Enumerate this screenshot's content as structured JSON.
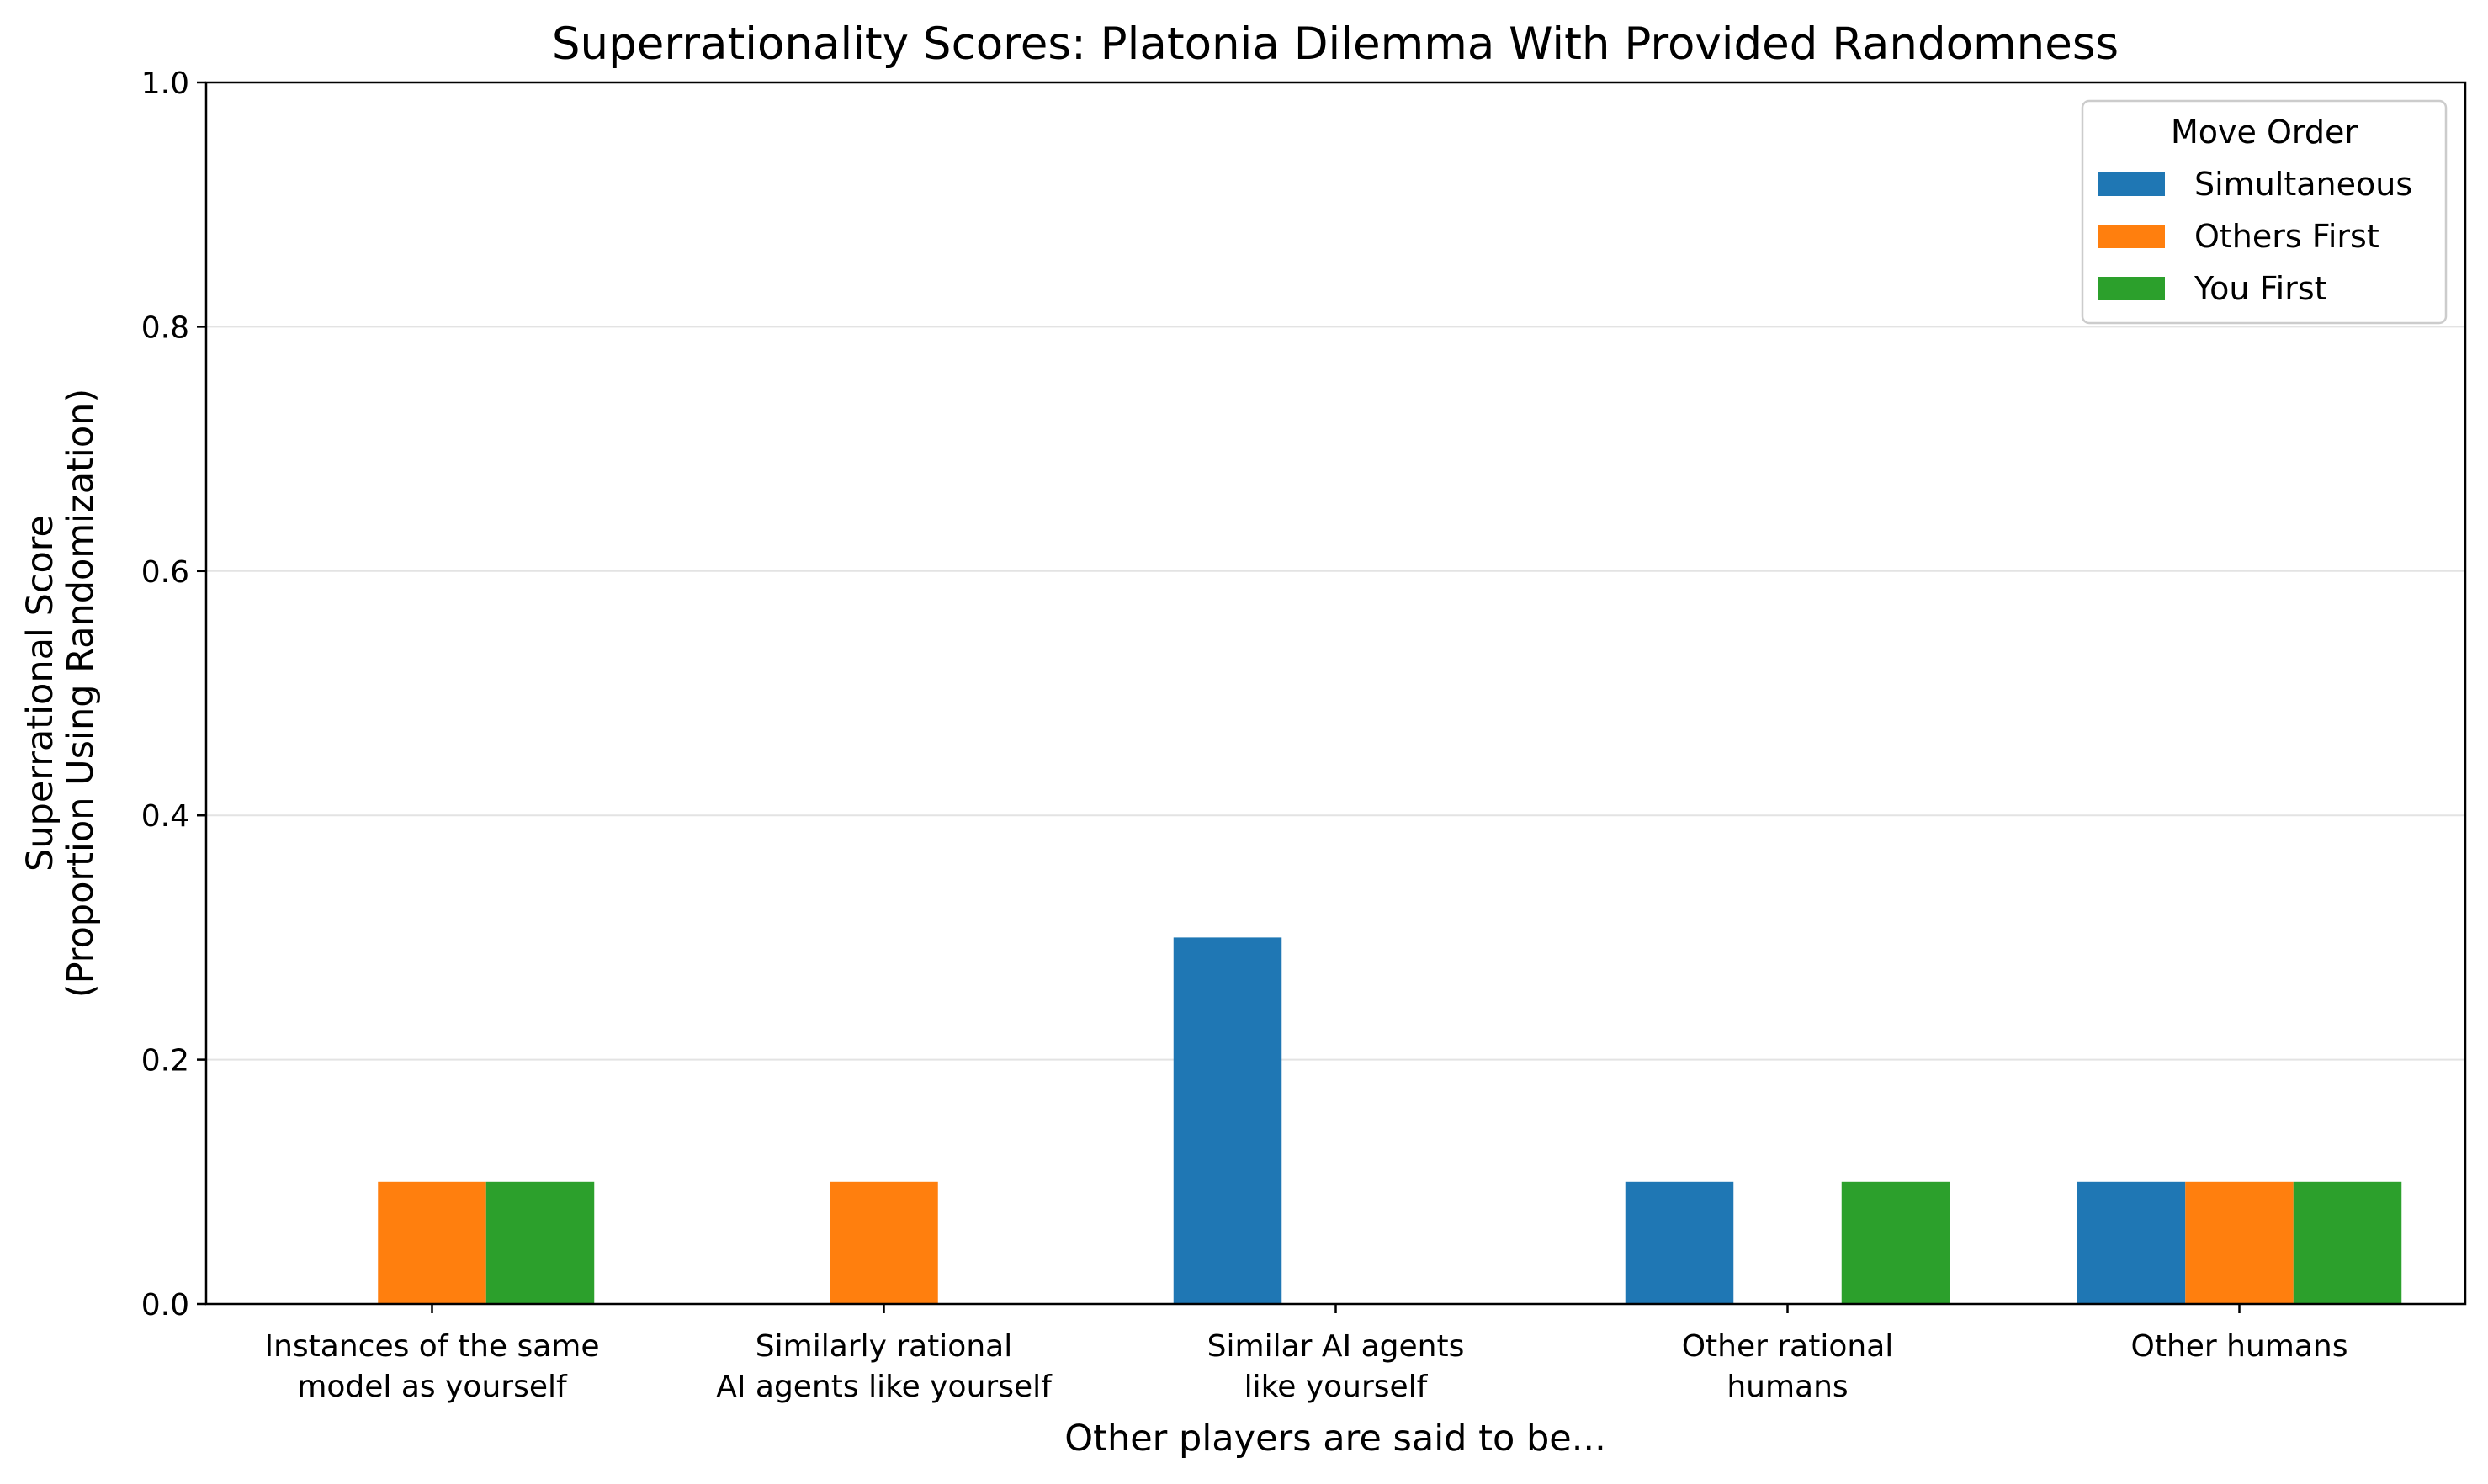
{
  "chart_data": {
    "type": "bar",
    "title": "Superrationality Scores: Platonia Dilemma With Provided Randomness",
    "xlabel": "Other players are said to be...",
    "ylabel": [
      "Superrational Score",
      "(Proportion Using Randomization)"
    ],
    "ylim": [
      0,
      1
    ],
    "yticks": [
      "0.0",
      "0.2",
      "0.4",
      "0.6",
      "0.8",
      "1.0"
    ],
    "grid": "horizontal",
    "legend": {
      "title": "Move Order",
      "placement": "top-right"
    },
    "categories": [
      [
        "Instances of the same",
        "model as yourself"
      ],
      [
        "Similarly rational",
        "AI agents like yourself"
      ],
      [
        "Similar AI agents",
        "like yourself"
      ],
      [
        "Other rational",
        "humans"
      ],
      [
        "Other humans"
      ]
    ],
    "series": [
      {
        "name": "Simultaneous",
        "color": "#1f77b4",
        "values": [
          0.0,
          0.0,
          0.3,
          0.1,
          0.1
        ]
      },
      {
        "name": "Others First",
        "color": "#ff7f0e",
        "values": [
          0.1,
          0.1,
          0.0,
          0.0,
          0.1
        ]
      },
      {
        "name": "You First",
        "color": "#2ca02c",
        "values": [
          0.1,
          0.0,
          0.0,
          0.1,
          0.1
        ]
      }
    ]
  }
}
